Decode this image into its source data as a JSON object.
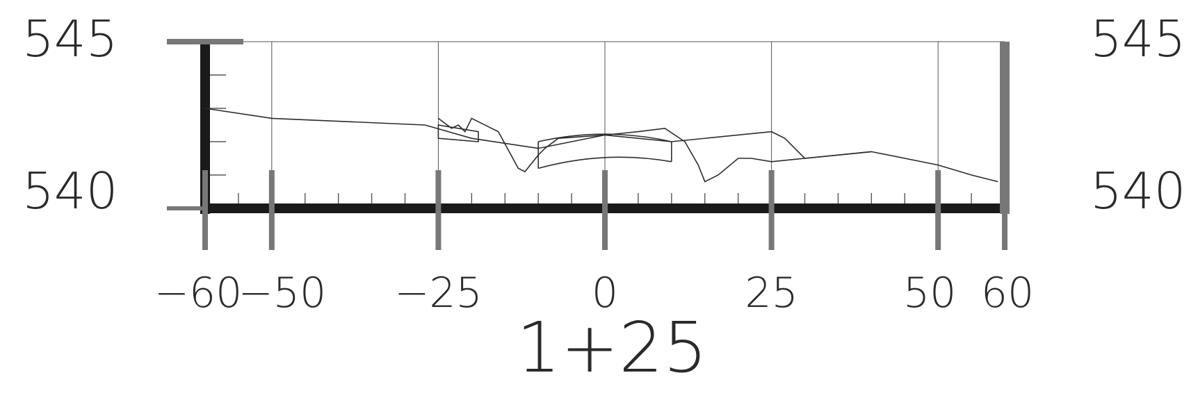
{
  "section": {
    "station_label": "1+25",
    "elevation_labels": {
      "top": "545",
      "bottom": "540"
    },
    "offset_labels": [
      "−60",
      "−50",
      "−25",
      "0",
      "25",
      "50",
      "60"
    ],
    "offset_values": [
      -60,
      -50,
      -25,
      0,
      25,
      50,
      60
    ],
    "elevation_range": [
      540,
      545
    ],
    "offset_range": [
      -60,
      60
    ],
    "minor_tick_spacing": 5,
    "minor_elev_spacing": 1,
    "existing_ground": [
      [
        -60,
        543.0
      ],
      [
        -50,
        542.7
      ],
      [
        -27,
        542.5
      ],
      [
        -20,
        542.1
      ],
      [
        -10,
        541.8
      ],
      [
        -5,
        542.0
      ],
      [
        0,
        542.2
      ],
      [
        10,
        542.0
      ],
      [
        25,
        542.3
      ],
      [
        27,
        542.1
      ],
      [
        30,
        541.5
      ],
      [
        40,
        541.7
      ],
      [
        50,
        541.3
      ],
      [
        55,
        541.0
      ],
      [
        59,
        540.8
      ]
    ],
    "proposed_profile": [
      [
        -25,
        542.7
      ],
      [
        -23,
        542.4
      ],
      [
        -22,
        542.5
      ],
      [
        -21,
        542.3
      ],
      [
        -20,
        542.7
      ],
      [
        -17,
        542.4
      ],
      [
        -16,
        542.3
      ],
      [
        -13,
        541.2
      ],
      [
        -12,
        541.1
      ],
      [
        -10,
        541.6
      ],
      [
        -9,
        541.8
      ],
      [
        -7,
        542.1
      ],
      [
        0,
        542.2
      ],
      [
        5,
        542.3
      ],
      [
        9,
        542.4
      ],
      [
        12,
        542.0
      ],
      [
        14,
        541.3
      ],
      [
        15,
        540.8
      ],
      [
        17,
        541.0
      ],
      [
        20,
        541.5
      ],
      [
        22,
        541.5
      ],
      [
        25,
        541.4
      ],
      [
        30,
        541.5
      ],
      [
        40,
        541.7
      ]
    ],
    "colors": {
      "ink": "#2b2b2b",
      "frame": "#1a1a1a",
      "grid": "#555555",
      "post": "#777777"
    }
  }
}
